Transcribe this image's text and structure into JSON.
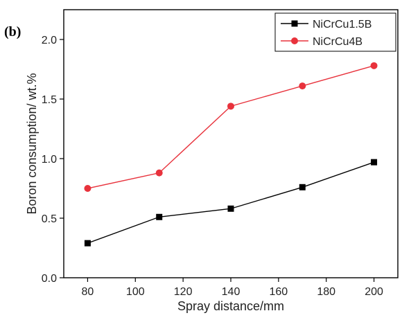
{
  "chart_data": {
    "type": "line",
    "panel_label": "(b)",
    "title": "",
    "xlabel": "Spray distance/mm",
    "ylabel": "Boron consumption/ wt.%",
    "xlim": [
      70,
      210
    ],
    "ylim": [
      0.0,
      2.25
    ],
    "xticks": [
      80,
      100,
      120,
      140,
      160,
      180,
      200
    ],
    "yticks": [
      "0.0",
      "0.5",
      "1.0",
      "1.5",
      "2.0"
    ],
    "grid": false,
    "legend_position": "top-right",
    "x": [
      80,
      110,
      140,
      170,
      200
    ],
    "series": [
      {
        "name": "NiCrCu1.5B",
        "marker": "square",
        "color": "#000000",
        "values": [
          0.29,
          0.51,
          0.58,
          0.76,
          0.97
        ]
      },
      {
        "name": "NiCrCu4B",
        "marker": "circle",
        "color": "#e8323c",
        "values": [
          0.75,
          0.88,
          1.44,
          1.61,
          1.78
        ]
      }
    ]
  }
}
